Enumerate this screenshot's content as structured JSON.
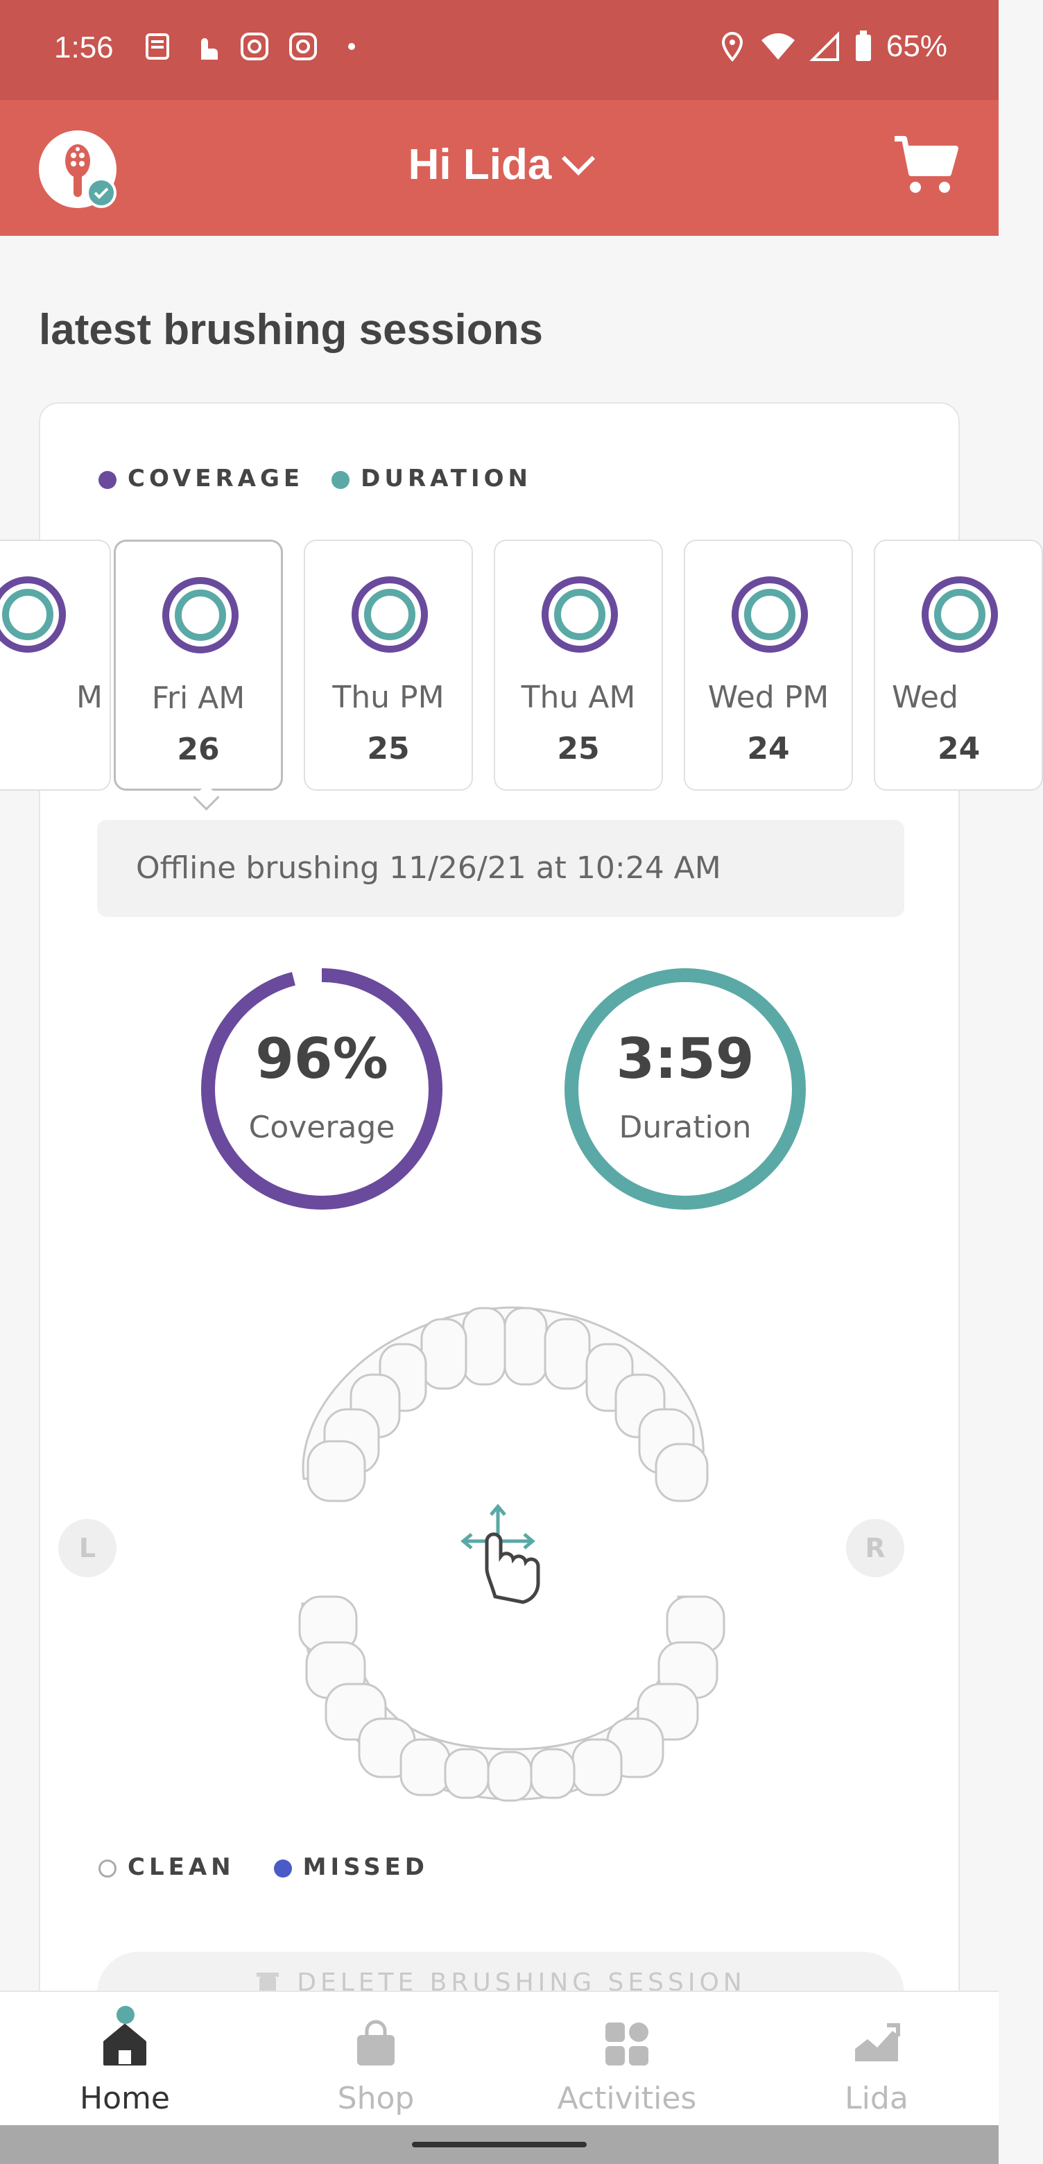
{
  "status_bar": {
    "time": "1:56",
    "battery": "65%"
  },
  "header": {
    "greeting": "Hi Lida"
  },
  "section_title": "latest brushing sessions",
  "legend": {
    "coverage": "COVERAGE",
    "duration": "DURATION",
    "coverage_color": "#6a4a9c",
    "duration_color": "#5aa9a6"
  },
  "sessions": [
    {
      "day": "M",
      "date": ""
    },
    {
      "day": "Fri AM",
      "date": "26"
    },
    {
      "day": "Thu PM",
      "date": "25"
    },
    {
      "day": "Thu AM",
      "date": "25"
    },
    {
      "day": "Wed PM",
      "date": "24"
    },
    {
      "day": "Wed",
      "date": "24"
    }
  ],
  "offline_text": "Offline brushing 11/26/21 at 10:24 AM",
  "coverage": {
    "value": "96%",
    "label": "Coverage",
    "fraction": 0.96
  },
  "duration": {
    "value": "3:59",
    "label": "Duration",
    "fraction": 1.0
  },
  "sides": {
    "left": "L",
    "right": "R"
  },
  "teeth_legend": {
    "clean": "CLEAN",
    "missed": "MISSED"
  },
  "delete_button": "DELETE BRUSHING SESSION",
  "nav": {
    "home": "Home",
    "shop": "Shop",
    "activities": "Activities",
    "profile": "Lida"
  }
}
